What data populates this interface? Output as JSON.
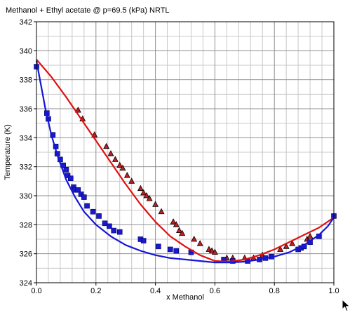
{
  "chart_data": {
    "type": "scatter",
    "title": "Methanol + Ethyl acetate @ p=69.5 (kPa) NRTL",
    "xlabel": "x Methanol",
    "ylabel": "Temperature (K)",
    "xlim": [
      0,
      1
    ],
    "ylim": [
      324,
      342
    ],
    "x_ticks": [
      0,
      0.2,
      0.4,
      0.6,
      0.8,
      1
    ],
    "x_tick_labels": [
      "0.0",
      "0.2",
      "0.4",
      "0.6",
      "0.8",
      "1.0"
    ],
    "y_ticks": [
      324,
      326,
      328,
      330,
      332,
      334,
      336,
      338,
      340,
      342
    ],
    "y_tick_labels": [
      "324",
      "326",
      "328",
      "330",
      "332",
      "334",
      "336",
      "338",
      "340",
      "342"
    ],
    "grid": true,
    "minor_grid": true,
    "legend": "none",
    "series": [
      {
        "kind": "line",
        "color": "#e01010",
        "x": [
          0,
          0.05,
          0.1,
          0.15,
          0.2,
          0.25,
          0.3,
          0.35,
          0.4,
          0.45,
          0.5,
          0.55,
          0.6,
          0.65,
          0.7,
          0.75,
          0.8,
          0.85,
          0.9,
          0.95,
          1
        ],
        "y": [
          339.4,
          338.2,
          336.8,
          335.3,
          333.8,
          332.3,
          330.8,
          329.4,
          328.2,
          327.2,
          326.5,
          325.9,
          325.5,
          325.45,
          325.6,
          325.9,
          326.3,
          326.8,
          327.3,
          327.8,
          328.5
        ]
      },
      {
        "kind": "line",
        "color": "#1515d8",
        "x": [
          0,
          0.01,
          0.02,
          0.03,
          0.05,
          0.07,
          0.1,
          0.13,
          0.16,
          0.2,
          0.25,
          0.3,
          0.35,
          0.4,
          0.45,
          0.5,
          0.55,
          0.6,
          0.65,
          0.7,
          0.75,
          0.8,
          0.85,
          0.9,
          0.95,
          0.98,
          1
        ],
        "y": [
          339.3,
          338.2,
          337.1,
          336.0,
          334.2,
          332.8,
          331.1,
          329.9,
          328.9,
          328.0,
          327.2,
          326.6,
          326.2,
          325.9,
          325.7,
          325.6,
          325.5,
          325.4,
          325.4,
          325.45,
          325.6,
          325.8,
          326.1,
          326.6,
          327.3,
          327.9,
          328.5
        ]
      },
      {
        "kind": "markers",
        "marker": "triangle",
        "color": "#c02020",
        "x": [
          0.14,
          0.155,
          0.195,
          0.235,
          0.25,
          0.265,
          0.28,
          0.29,
          0.305,
          0.32,
          0.35,
          0.36,
          0.37,
          0.38,
          0.4,
          0.42,
          0.46,
          0.47,
          0.48,
          0.49,
          0.53,
          0.55,
          0.58,
          0.59,
          0.6,
          0.64,
          0.66,
          0.7,
          0.73,
          0.76,
          0.82,
          0.84,
          0.86,
          0.91,
          0.92
        ],
        "y": [
          335.9,
          335.3,
          334.2,
          333.4,
          332.9,
          332.5,
          332.1,
          331.9,
          331.4,
          331.0,
          330.5,
          330.2,
          330.0,
          329.8,
          329.4,
          328.9,
          328.2,
          328.0,
          327.6,
          327.4,
          327.0,
          326.7,
          326.3,
          326.2,
          326.1,
          325.7,
          325.7,
          325.7,
          325.7,
          325.9,
          326.3,
          326.5,
          326.7,
          327.0,
          327.2
        ]
      },
      {
        "kind": "markers",
        "marker": "square",
        "color": "#1a1acc",
        "x": [
          0,
          0.035,
          0.04,
          0.055,
          0.065,
          0.07,
          0.08,
          0.09,
          0.1,
          0.105,
          0.115,
          0.125,
          0.13,
          0.14,
          0.15,
          0.16,
          0.17,
          0.19,
          0.21,
          0.23,
          0.245,
          0.26,
          0.28,
          0.35,
          0.36,
          0.41,
          0.45,
          0.47,
          0.52,
          0.63,
          0.66,
          0.71,
          0.75,
          0.77,
          0.79,
          0.88,
          0.89,
          0.9,
          0.92,
          0.95,
          1
        ],
        "y": [
          338.9,
          335.7,
          335.3,
          334.2,
          333.4,
          332.9,
          332.5,
          332.1,
          331.8,
          331.4,
          331.2,
          330.6,
          330.4,
          330.4,
          330.1,
          329.9,
          329.3,
          328.9,
          328.6,
          328.1,
          327.9,
          327.6,
          327.5,
          327.0,
          326.9,
          326.5,
          326.3,
          326.2,
          326.1,
          325.6,
          325.5,
          325.5,
          325.6,
          325.7,
          325.8,
          326.3,
          326.4,
          326.5,
          326.8,
          327.2,
          328.6
        ]
      }
    ]
  }
}
